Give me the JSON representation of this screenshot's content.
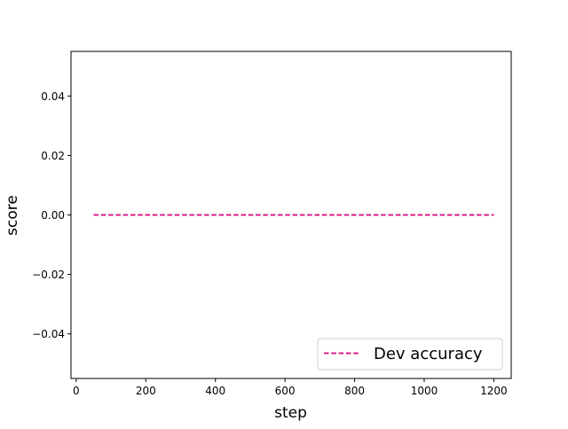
{
  "chart_data": {
    "type": "line",
    "title": "",
    "xlabel": "step",
    "ylabel": "score",
    "xlim": [
      -15,
      1250
    ],
    "ylim": [
      -0.055,
      0.055
    ],
    "xticks": [
      0,
      200,
      400,
      600,
      800,
      1000,
      1200
    ],
    "yticks": [
      -0.04,
      -0.02,
      0.0,
      0.02,
      0.04
    ],
    "xtick_labels": [
      "0",
      "200",
      "400",
      "600",
      "800",
      "1000",
      "1200"
    ],
    "ytick_labels": [
      "−0.04",
      "−0.02",
      "0.00",
      "0.02",
      "0.04"
    ],
    "grid": false,
    "legend_position": "lower-right",
    "series": [
      {
        "name": "Dev accuracy",
        "color": "#d6007a",
        "linestyle": "dashed",
        "x": [
          50,
          1200
        ],
        "y": [
          0.0,
          0.0
        ]
      }
    ]
  }
}
